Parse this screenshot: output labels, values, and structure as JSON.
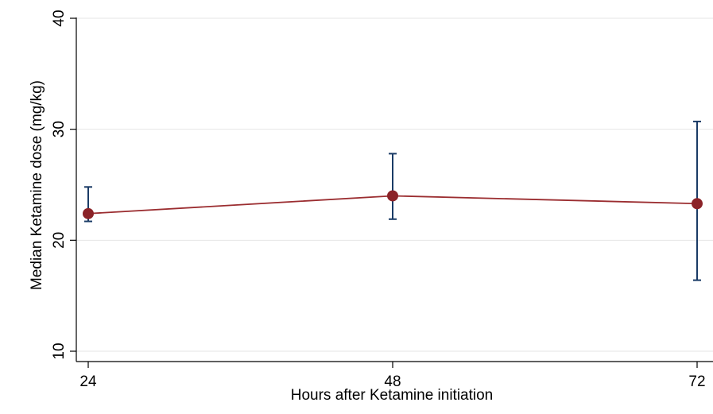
{
  "chart_data": {
    "type": "line",
    "title": "",
    "xlabel": "Hours after Ketamine initiation",
    "ylabel": "Median Ketamine dose (mg/kg)",
    "x": [
      24,
      48,
      72
    ],
    "x_ticks": [
      24,
      48,
      72
    ],
    "y_ticks": [
      10,
      20,
      30,
      40
    ],
    "xlim": [
      24,
      72
    ],
    "ylim": [
      10,
      40
    ],
    "grid": true,
    "legend": "none",
    "series": [
      {
        "values": [
          22.4,
          24.0,
          23.3
        ],
        "error_low": [
          21.7,
          21.9,
          16.4
        ],
        "error_high": [
          24.8,
          27.8,
          30.7
        ],
        "line_color": "#9b2d30",
        "marker_color": "#8b2328",
        "error_bar_color": "#1a3b66"
      }
    ],
    "colors": {
      "grid": "#e6e6e6",
      "axis": "#000000"
    }
  }
}
